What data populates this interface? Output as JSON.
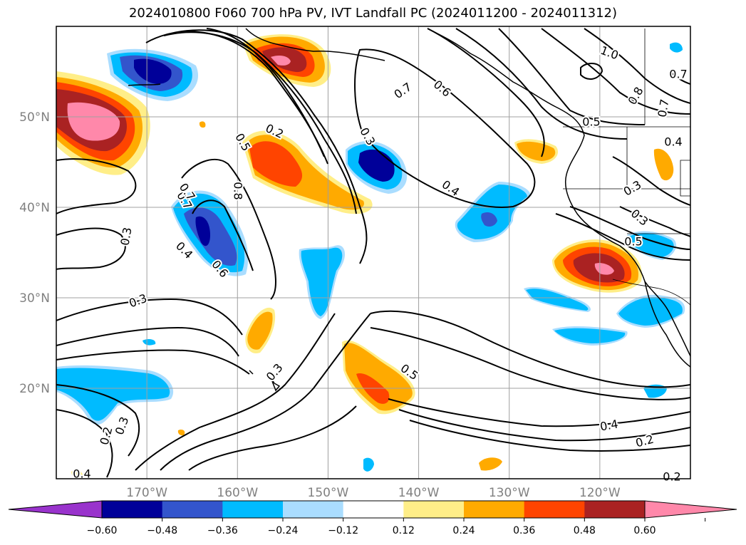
{
  "title": "2024010800 F060 700 hPa PV, IVT Landfall PC (2024011200 - 2024011312)",
  "lat_labels": [
    {
      "value": 50,
      "text": "50°N"
    },
    {
      "value": 40,
      "text": "40°N"
    },
    {
      "value": 30,
      "text": "30°N"
    },
    {
      "value": 20,
      "text": "20°N"
    }
  ],
  "lon_labels": [
    {
      "value": -170,
      "text": "170°W"
    },
    {
      "value": -160,
      "text": "160°W"
    },
    {
      "value": -150,
      "text": "150°W"
    },
    {
      "value": -140,
      "text": "140°W"
    },
    {
      "value": -130,
      "text": "130°W"
    },
    {
      "value": -120,
      "text": "120°W"
    }
  ],
  "map_extent": {
    "lon_min": -180,
    "lon_max": -110,
    "lat_min": 10,
    "lat_max": 60
  },
  "colorbar": {
    "colors": [
      "#9933cc",
      "#000099",
      "#3355cc",
      "#00bbff",
      "#aaddff",
      "#ffffff",
      "#ffee88",
      "#ffaa00",
      "#ff4400",
      "#aa2222",
      "#ff88aa"
    ],
    "ticks": [
      "−0.60",
      "−0.48",
      "−0.36",
      "−0.24",
      "−0.12",
      "0.12",
      "0.24",
      "0.36",
      "0.48",
      "0.60"
    ]
  },
  "contour_labels": [
    "1.0",
    "0.8",
    "0.7",
    "0.7",
    "0.6",
    "0.7",
    "0.5",
    "0.4",
    "0.3",
    "0.3",
    "0.7",
    "0.5",
    "0.2",
    "0.5",
    "0.3",
    "0.8",
    "0.7",
    "0.4",
    "0.6",
    "0.4",
    "0.3",
    "0.3",
    "0.3",
    "0.3",
    "0.2",
    "0.5",
    "0.4",
    "0.2",
    "0.2",
    "0.4"
  ]
}
